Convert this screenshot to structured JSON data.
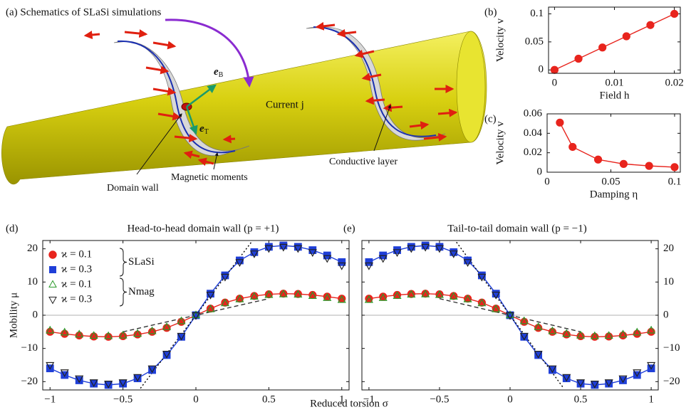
{
  "schematic": {
    "title": "(a) Schematics of SLaSi simulations",
    "current": "Current j",
    "eB": {
      "base": "e",
      "sub": "B"
    },
    "eT": {
      "base": "e",
      "sub": "T"
    },
    "domain_wall": "Domain wall",
    "magnetic_moments": "Magnetic moments",
    "conductive_layer": "Conductive layer"
  },
  "shared_xlabel": "Reduced torsion σ",
  "chart_data": [
    {
      "type": "scatter",
      "panel": "(b)",
      "xlabel": "Field h",
      "ylabel": "Velocity v",
      "xlim": [
        -0.001,
        0.021
      ],
      "ylim": [
        -0.006,
        0.112
      ],
      "xticks": [
        0,
        0.01,
        0.02
      ],
      "yticks": [
        0,
        0.05,
        0.1
      ],
      "series": [
        {
          "color": "#e8241d",
          "marker": "circle",
          "line": "solid",
          "x": [
            0,
            0.004,
            0.008,
            0.012,
            0.016,
            0.02
          ],
          "values": [
            0,
            0.02,
            0.04,
            0.06,
            0.08,
            0.1
          ]
        }
      ]
    },
    {
      "type": "scatter",
      "panel": "(c)",
      "xlabel": "Damping η",
      "ylabel": "Velocity v",
      "xlim": [
        0,
        0.1045
      ],
      "ylim": [
        0,
        0.06
      ],
      "xticks": [
        0,
        0.05,
        0.1
      ],
      "yticks": [
        0,
        0.02,
        0.04,
        0.06
      ],
      "series": [
        {
          "color": "#e8241d",
          "marker": "circle",
          "line": "solid",
          "x": [
            0.01,
            0.02,
            0.04,
            0.06,
            0.08,
            0.1
          ],
          "values": [
            0.051,
            0.026,
            0.013,
            0.0085,
            0.0065,
            0.0052
          ]
        }
      ]
    },
    {
      "type": "scatter",
      "panel": "(d)",
      "title": "Head-to-head domain wall (p = +1)",
      "ylabel": "Mobility μ",
      "xlim": [
        -1.05,
        1.05
      ],
      "ylim": [
        -22.5,
        22.5
      ],
      "zero_line": true,
      "legend": "upper left",
      "yaxis_side": "left",
      "xticks": [
        {
          "value": -1,
          "label": "−1"
        },
        {
          "value": -0.5,
          "label": "−0.5"
        },
        0,
        0.5,
        1
      ],
      "yticks": [
        {
          "value": -20,
          "label": "−20"
        },
        {
          "value": -10,
          "label": "−10"
        },
        0,
        10,
        20
      ],
      "series": [
        {
          "name": "ϰ = 0.1",
          "group": "SLaSi",
          "color": "#e8241d",
          "marker": "circle",
          "line": "solid",
          "x": [
            -1,
            -0.9,
            -0.8,
            -0.7,
            -0.6,
            -0.5,
            -0.4,
            -0.3,
            -0.2,
            -0.1,
            0,
            0.1,
            0.2,
            0.3,
            0.4,
            0.5,
            0.6,
            0.7,
            0.8,
            0.9,
            1
          ],
          "values": [
            -5,
            -5.6,
            -6.1,
            -6.4,
            -6.5,
            -6.3,
            -5.8,
            -5,
            -3.8,
            -2,
            0,
            2,
            3.8,
            5,
            5.8,
            6.3,
            6.5,
            6.4,
            6.1,
            5.6,
            5
          ]
        },
        {
          "name": "ϰ = 0.3",
          "group": "SLaSi",
          "color": "#1f3fd8",
          "marker": "square",
          "line": "solid",
          "x": [
            -1,
            -0.9,
            -0.8,
            -0.7,
            -0.6,
            -0.5,
            -0.4,
            -0.3,
            -0.2,
            -0.1,
            0,
            0.1,
            0.2,
            0.3,
            0.4,
            0.5,
            0.6,
            0.7,
            0.8,
            0.9,
            1
          ],
          "values": [
            -16,
            -18,
            -19.6,
            -20.6,
            -21,
            -20.6,
            -19,
            -16.5,
            -12,
            -6.5,
            0,
            6.5,
            12,
            16.5,
            19,
            20.6,
            21,
            20.6,
            19.6,
            18,
            16
          ]
        },
        {
          "name": "ϰ = 0.1",
          "group": "Nmag",
          "color": "#2a9a2a",
          "marker": "triangle-up",
          "open": true,
          "x": [
            -1,
            -0.9,
            -0.8,
            -0.7,
            -0.6,
            -0.5,
            -0.4,
            -0.3,
            -0.2,
            -0.1,
            0,
            0.1,
            0.2,
            0.3,
            0.4,
            0.5,
            0.6,
            0.7,
            0.8,
            0.9,
            1
          ],
          "values": [
            -4.6,
            -5.2,
            -5.8,
            -6.2,
            -6.3,
            -6.1,
            -5.6,
            -4.8,
            -3.6,
            -1.8,
            0,
            1.8,
            3.6,
            4.8,
            5.6,
            6.1,
            6.3,
            6.2,
            5.8,
            5.2,
            4.6
          ]
        },
        {
          "name": "ϰ = 0.3",
          "group": "Nmag",
          "color": "#222222",
          "marker": "triangle-down",
          "open": true,
          "x": [
            -1,
            -0.9,
            -0.8,
            -0.7,
            -0.6,
            -0.5,
            -0.4,
            -0.3,
            -0.2,
            -0.1,
            0,
            0.1,
            0.2,
            0.3,
            0.4,
            0.5,
            0.6,
            0.7,
            0.8,
            0.9,
            1
          ],
          "values": [
            -15,
            -17.2,
            -19,
            -20.2,
            -20.6,
            -20.2,
            -18.6,
            -16,
            -11.6,
            -6.2,
            0,
            6.2,
            11.6,
            16,
            18.6,
            20.2,
            20.6,
            20.2,
            19,
            17.2,
            15
          ]
        },
        {
          "color": "#333333",
          "line": "dashed",
          "x": [
            -0.5,
            0.5
          ],
          "values": [
            -5,
            5
          ]
        },
        {
          "color": "#000000",
          "line": "dotted",
          "x": [
            -0.38,
            0.38
          ],
          "values": [
            -22,
            22
          ]
        }
      ]
    },
    {
      "type": "scatter",
      "panel": "(e)",
      "title": "Tail-to-tail domain wall (p = −1)",
      "xlim": [
        -1.05,
        1.05
      ],
      "ylim": [
        -22.5,
        22.5
      ],
      "zero_line": true,
      "yaxis_side": "right",
      "xticks": [
        {
          "value": -1,
          "label": "−1"
        },
        {
          "value": -0.5,
          "label": "−0.5"
        },
        0,
        0.5,
        1
      ],
      "yticks": [
        {
          "value": -20,
          "label": "−20"
        },
        {
          "value": -10,
          "label": "−10"
        },
        0,
        10,
        20
      ],
      "series": [
        {
          "color": "#e8241d",
          "marker": "circle",
          "line": "solid",
          "x": [
            -1,
            -0.9,
            -0.8,
            -0.7,
            -0.6,
            -0.5,
            -0.4,
            -0.3,
            -0.2,
            -0.1,
            0,
            0.1,
            0.2,
            0.3,
            0.4,
            0.5,
            0.6,
            0.7,
            0.8,
            0.9,
            1
          ],
          "values": [
            5,
            5.6,
            6.1,
            6.4,
            6.5,
            6.3,
            5.8,
            5,
            3.8,
            2,
            0,
            -2,
            -3.8,
            -5,
            -5.8,
            -6.3,
            -6.5,
            -6.4,
            -6.1,
            -5.6,
            -5
          ]
        },
        {
          "color": "#1f3fd8",
          "marker": "square",
          "line": "solid",
          "x": [
            -1,
            -0.9,
            -0.8,
            -0.7,
            -0.6,
            -0.5,
            -0.4,
            -0.3,
            -0.2,
            -0.1,
            0,
            0.1,
            0.2,
            0.3,
            0.4,
            0.5,
            0.6,
            0.7,
            0.8,
            0.9,
            1
          ],
          "values": [
            16,
            18,
            19.6,
            20.6,
            21,
            20.6,
            19,
            16.5,
            12,
            6.5,
            0,
            -6.5,
            -12,
            -16.5,
            -19,
            -20.6,
            -21,
            -20.6,
            -19.6,
            -18,
            -16
          ]
        },
        {
          "color": "#2a9a2a",
          "marker": "triangle-up",
          "open": true,
          "x": [
            -1,
            -0.9,
            -0.8,
            -0.7,
            -0.6,
            -0.5,
            -0.4,
            -0.3,
            -0.2,
            -0.1,
            0,
            0.1,
            0.2,
            0.3,
            0.4,
            0.5,
            0.6,
            0.7,
            0.8,
            0.9,
            1
          ],
          "values": [
            4.6,
            5.2,
            5.8,
            6.2,
            6.3,
            6.1,
            5.6,
            4.8,
            3.6,
            1.8,
            0,
            -1.8,
            -3.6,
            -4.8,
            -5.6,
            -6.1,
            -6.3,
            -6.2,
            -5.8,
            -5.2,
            -4.6
          ]
        },
        {
          "color": "#222222",
          "marker": "triangle-down",
          "open": true,
          "x": [
            -1,
            -0.9,
            -0.8,
            -0.7,
            -0.6,
            -0.5,
            -0.4,
            -0.3,
            -0.2,
            -0.1,
            0,
            0.1,
            0.2,
            0.3,
            0.4,
            0.5,
            0.6,
            0.7,
            0.8,
            0.9,
            1
          ],
          "values": [
            15,
            17.2,
            19,
            20.2,
            20.6,
            20.2,
            18.6,
            16,
            11.6,
            6.2,
            0,
            -6.2,
            -11.6,
            -16,
            -18.6,
            -20.2,
            -20.6,
            -20.2,
            -19,
            -17.2,
            -15
          ]
        },
        {
          "color": "#333333",
          "line": "dashed",
          "x": [
            -0.5,
            0.5
          ],
          "values": [
            5,
            -5
          ]
        },
        {
          "color": "#000000",
          "line": "dotted",
          "x": [
            -0.38,
            0.38
          ],
          "values": [
            22,
            -22
          ]
        }
      ]
    }
  ]
}
